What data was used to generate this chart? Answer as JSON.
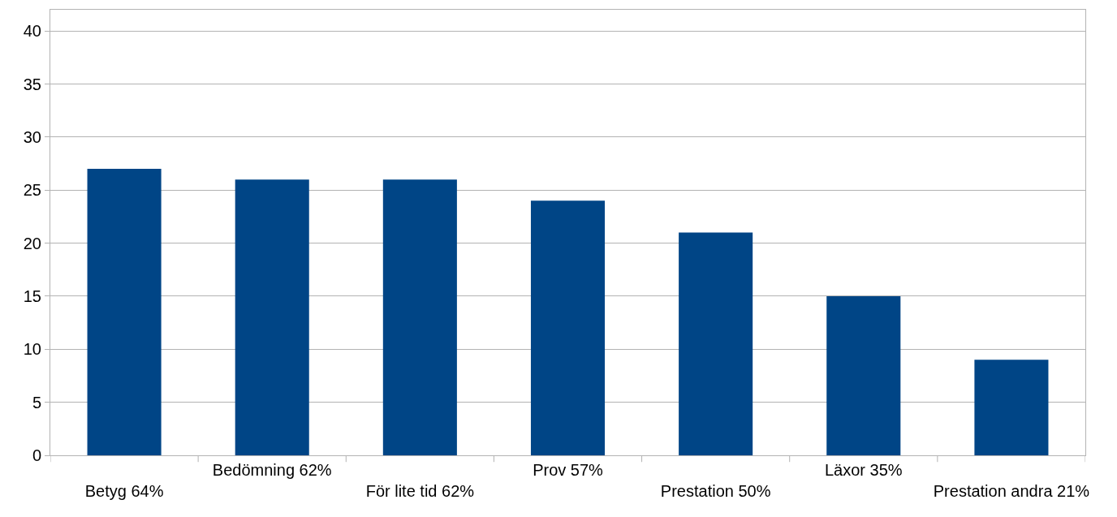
{
  "chart_data": {
    "type": "bar",
    "categories": [
      "Betyg 64%",
      "Bedömning 62%",
      "För lite tid 62%",
      "Prov 57%",
      "Prestation 50%",
      "Läxor 35%",
      "Prestation andra 21%"
    ],
    "values": [
      27,
      26,
      26,
      24,
      21,
      15,
      9
    ],
    "color": "#004586",
    "ylim": [
      0,
      42
    ],
    "yticks": [
      0,
      5,
      10,
      15,
      20,
      25,
      30,
      35,
      40
    ],
    "grid": "y"
  }
}
